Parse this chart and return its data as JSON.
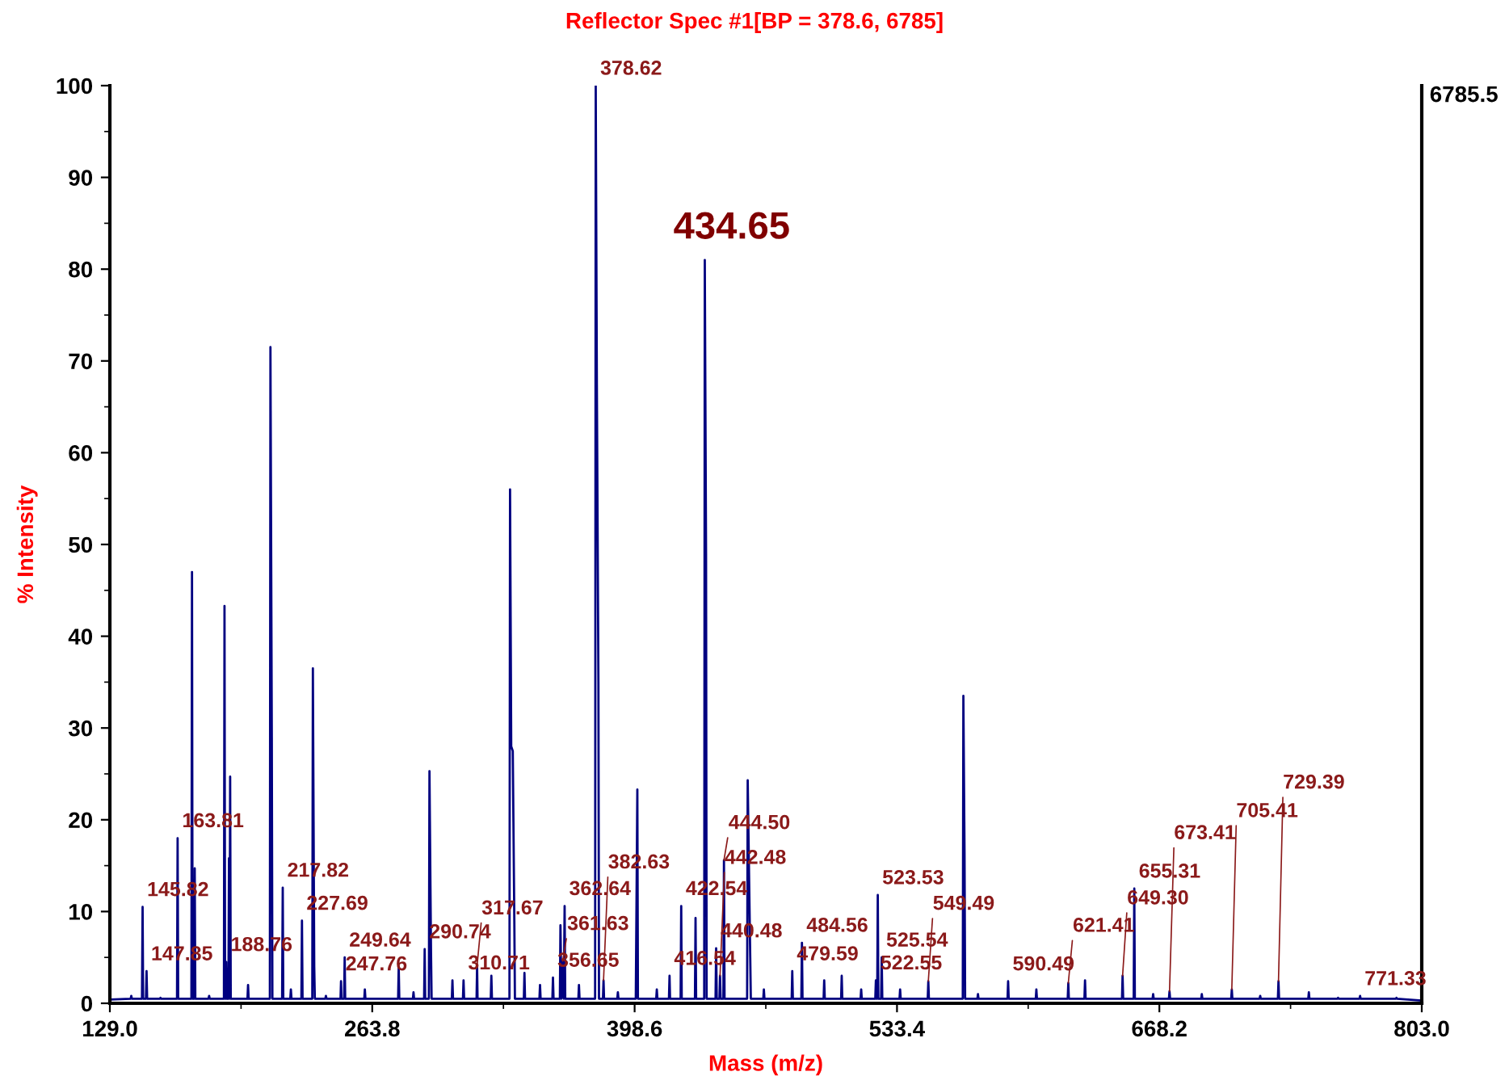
{
  "chart_data": {
    "type": "line",
    "title": "Reflector Spec #1[BP = 378.6, 6785]",
    "xlabel": "Mass (m/z)",
    "ylabel": "% Intensity",
    "xlim": [
      129.0,
      803.0
    ],
    "xticks": [
      {
        "value": 129.0,
        "label": "129.0"
      },
      {
        "value": 263.8,
        "label": "263.8"
      },
      {
        "value": 398.6,
        "label": "398.6"
      },
      {
        "value": 533.4,
        "label": "533.4"
      },
      {
        "value": 668.2,
        "label": "668.2"
      },
      {
        "value": 803.0,
        "label": "803.0"
      }
    ],
    "ylim": [
      0,
      100
    ],
    "yticks": [
      0,
      10,
      20,
      30,
      40,
      50,
      60,
      70,
      80,
      90,
      100
    ],
    "grid": false,
    "legend": false,
    "marker": "none",
    "line_style": "solid",
    "series": [
      {
        "color": "#000080",
        "x": [
          129,
          139.7,
          140,
          140.3,
          145.5,
          145.82,
          146.1,
          147.55,
          147.85,
          148.15,
          154.7,
          155,
          155.3,
          163.5,
          163.81,
          164.1,
          170.9,
          171.2,
          171.5,
          172.3,
          172.6,
          172.9,
          179.7,
          180,
          180.3,
          187.6,
          187.9,
          188.2,
          188.5,
          188.76,
          189.0,
          189.9,
          190.2,
          190.5,
          190.8,
          191.1,
          199.7,
          200,
          200.3,
          211.2,
          211.5,
          212.2,
          212.5,
          217.5,
          217.82,
          218.1,
          221.7,
          222,
          222.3,
          227.4,
          227.69,
          228.0,
          233.0,
          233.3,
          234,
          234.3,
          239.7,
          240,
          240.3,
          247.5,
          247.76,
          248.0,
          249.35,
          249.64,
          249.9,
          259.7,
          260,
          260.3,
          277.1,
          277.4,
          277.7,
          284.7,
          285,
          285.3,
          290.45,
          290.74,
          291.0,
          292.9,
          293.2,
          294,
          294.3,
          304.7,
          305,
          305.3,
          310.4,
          310.71,
          311.0,
          317.4,
          317.67,
          317.9,
          324.7,
          325,
          325.3,
          334.3,
          334.6,
          335.2,
          336,
          336.8,
          337.1,
          341.7,
          342,
          342.3,
          349.7,
          350,
          350.3,
          356.35,
          356.65,
          356.95,
          360.2,
          360.5,
          361.0,
          361.63,
          362.2,
          362.64,
          362.95,
          369.7,
          370,
          370.3,
          378.3,
          378.62,
          379.2,
          380,
          380.3,
          382.33,
          382.63,
          382.9,
          389.7,
          390,
          390.3,
          399.2,
          399.5,
          400,
          400.3,
          409.7,
          410,
          410.3,
          416.24,
          416.54,
          416.8,
          422.24,
          422.54,
          422.8,
          429.6,
          429.9,
          430.2,
          434.35,
          434.65,
          435.3,
          435.6,
          440.18,
          440.48,
          440.8,
          442.18,
          442.48,
          442.8,
          444.2,
          444.5,
          444.8,
          456.4,
          456.7,
          458,
          458.3,
          464.7,
          465,
          465.3,
          479.29,
          479.59,
          479.9,
          484.26,
          484.56,
          484.86,
          495.7,
          496,
          496.3,
          504.7,
          505,
          505.3,
          514.7,
          515,
          515.3,
          522.25,
          522.55,
          522.85,
          523.23,
          523.53,
          523.83,
          525.24,
          525.54,
          525.85,
          534.7,
          535,
          535.3,
          549.19,
          549.49,
          549.8,
          567.2,
          567.5,
          568.1,
          568.4,
          574.7,
          575,
          575.3,
          590.19,
          590.49,
          590.8,
          604.7,
          605,
          605.3,
          621.11,
          621.41,
          621.7,
          629.7,
          630,
          630.3,
          649.0,
          649.3,
          649.6,
          655.01,
          655.31,
          655.6,
          664.7,
          665,
          665.3,
          673.11,
          673.41,
          673.7,
          689.7,
          690,
          690.3,
          705.11,
          705.41,
          705.7,
          719.7,
          720,
          720.3,
          729.09,
          729.39,
          729.7,
          744.7,
          745,
          745.3,
          759.7,
          760,
          760.3,
          771.03,
          771.33,
          771.6,
          789.7,
          790,
          790.3,
          803
        ],
        "values": [
          0.4,
          0.5,
          0.8,
          0.5,
          0.5,
          10.5,
          0.5,
          0.5,
          3.5,
          0.5,
          0.5,
          0.6,
          0.5,
          0.5,
          18,
          0.5,
          0.5,
          47,
          0.5,
          0.5,
          14.7,
          0.5,
          0.5,
          0.8,
          0.5,
          0.5,
          43.3,
          0.5,
          0.5,
          4.5,
          0.5,
          0.5,
          15.8,
          0.5,
          24.7,
          0.5,
          0.5,
          2,
          0.5,
          0.5,
          71.5,
          29,
          0.5,
          0.5,
          12.6,
          0.5,
          0.5,
          1.5,
          0.5,
          0.5,
          9,
          0.5,
          0.5,
          36.5,
          4,
          0.5,
          0.5,
          0.8,
          0.5,
          0.5,
          2.4,
          0.5,
          0.5,
          5,
          0.5,
          0.5,
          1.5,
          0.5,
          0.5,
          4,
          0.5,
          0.5,
          1.2,
          0.5,
          0.5,
          5.9,
          0.5,
          0.5,
          25.3,
          5.5,
          0.5,
          0.5,
          2.5,
          0.5,
          0.5,
          2.5,
          0.5,
          0.5,
          4.1,
          0.5,
          0.5,
          3,
          0.5,
          0.5,
          56,
          28,
          27.5,
          9,
          0.5,
          0.5,
          3.3,
          0.5,
          0.5,
          2,
          0.5,
          0.5,
          2.8,
          0.5,
          0.5,
          8.5,
          0.5,
          4.6,
          0.5,
          10.6,
          0.5,
          0.5,
          2,
          0.5,
          0.5,
          100,
          67.5,
          35,
          0.5,
          0.5,
          2.5,
          0.5,
          0.5,
          1.2,
          0.5,
          0.5,
          9,
          23.3,
          0.5,
          0.5,
          1.5,
          0.5,
          0.5,
          3,
          0.5,
          0.5,
          10.6,
          0.5,
          0.5,
          9.3,
          0.5,
          0.5,
          81,
          49,
          0.5,
          0.5,
          6,
          0.5,
          0.5,
          3,
          0.5,
          0.5,
          15.6,
          0.5,
          0.5,
          24.3,
          5,
          0.5,
          0.5,
          1.5,
          0.5,
          0.5,
          3.5,
          0.5,
          0.5,
          6.6,
          0.5,
          0.5,
          2.5,
          0.5,
          0.5,
          3,
          0.5,
          0.5,
          1.5,
          0.5,
          0.5,
          2.5,
          0.5,
          0.5,
          11.8,
          0.5,
          0.5,
          5,
          0.5,
          0.5,
          1.5,
          0.5,
          0.5,
          2.4,
          0.5,
          0.5,
          33.5,
          16.2,
          0.5,
          0.5,
          1,
          0.5,
          0.5,
          2.4,
          0.5,
          0.5,
          1.5,
          0.5,
          0.5,
          2.2,
          0.5,
          0.5,
          2.5,
          0.5,
          0.5,
          3,
          0.5,
          0.5,
          12.5,
          0.5,
          0.5,
          1,
          0.5,
          0.5,
          1.3,
          0.5,
          0.5,
          1,
          0.5,
          0.5,
          1.5,
          0.5,
          0.5,
          0.8,
          0.5,
          0.5,
          2.4,
          0.5,
          0.5,
          1.2,
          0.5,
          0.5,
          0.6,
          0.5,
          0.5,
          0.8,
          0.5,
          0.5,
          0.6,
          0.5,
          0.3
        ]
      }
    ],
    "annotations": [
      {
        "text": "378.62",
        "x": 378.62,
        "y": 100
      },
      {
        "text": "434.65",
        "x": 434.65,
        "y": 81
      },
      {
        "text": "145.82",
        "x": 145.82,
        "y": 10.5
      },
      {
        "text": "147.85",
        "x": 147.85,
        "y": 3.5
      },
      {
        "text": "163.81",
        "x": 163.81,
        "y": 18
      },
      {
        "text": "188.76",
        "x": 188.76,
        "y": 4.5
      },
      {
        "text": "217.82",
        "x": 217.82,
        "y": 12.6
      },
      {
        "text": "227.69",
        "x": 227.69,
        "y": 9
      },
      {
        "text": "247.76",
        "x": 247.76,
        "y": 2.4
      },
      {
        "text": "249.64",
        "x": 249.64,
        "y": 5
      },
      {
        "text": "290.74",
        "x": 290.74,
        "y": 5.9
      },
      {
        "text": "310.71",
        "x": 310.71,
        "y": 2.5
      },
      {
        "text": "317.67",
        "x": 317.67,
        "y": 4.1
      },
      {
        "text": "356.65",
        "x": 356.65,
        "y": 2.8
      },
      {
        "text": "361.63",
        "x": 361.63,
        "y": 4.6
      },
      {
        "text": "362.64",
        "x": 362.64,
        "y": 10.6
      },
      {
        "text": "382.63",
        "x": 382.63,
        "y": 2.5
      },
      {
        "text": "416.54",
        "x": 416.54,
        "y": 3
      },
      {
        "text": "422.54",
        "x": 422.54,
        "y": 10.6
      },
      {
        "text": "440.48",
        "x": 440.48,
        "y": 6
      },
      {
        "text": "442.48",
        "x": 442.48,
        "y": 3
      },
      {
        "text": "444.50",
        "x": 444.5,
        "y": 15.6
      },
      {
        "text": "479.59",
        "x": 479.59,
        "y": 3.5
      },
      {
        "text": "484.56",
        "x": 484.56,
        "y": 6.6
      },
      {
        "text": "522.55",
        "x": 522.55,
        "y": 2.5
      },
      {
        "text": "523.53",
        "x": 523.53,
        "y": 11.8
      },
      {
        "text": "525.54",
        "x": 525.54,
        "y": 5
      },
      {
        "text": "549.49",
        "x": 549.49,
        "y": 2.4
      },
      {
        "text": "590.49",
        "x": 590.49,
        "y": 2.4
      },
      {
        "text": "621.41",
        "x": 621.41,
        "y": 2.2
      },
      {
        "text": "649.30",
        "x": 649.3,
        "y": 3
      },
      {
        "text": "655.31",
        "x": 655.31,
        "y": 12.5
      },
      {
        "text": "673.41",
        "x": 673.41,
        "y": 1.3
      },
      {
        "text": "705.41",
        "x": 705.41,
        "y": 1.5
      },
      {
        "text": "729.39",
        "x": 729.39,
        "y": 2.4
      },
      {
        "text": "771.33",
        "x": 771.33,
        "y": 0.8
      },
      "6785.5"
    ]
  }
}
